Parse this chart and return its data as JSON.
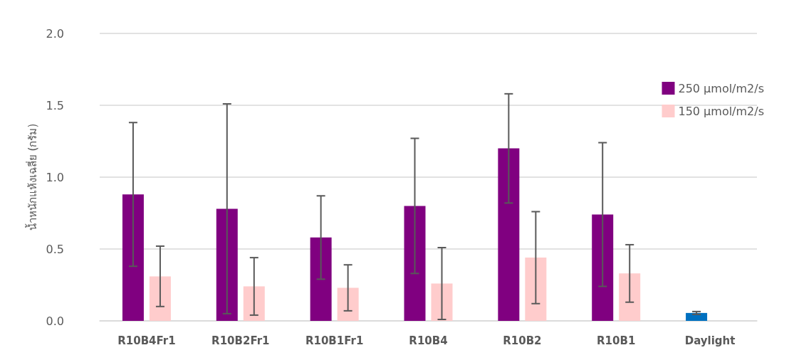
{
  "chart_data": {
    "type": "bar",
    "ylabel": "น้ำหนักแห้งเฉลี่ย (กรัม)",
    "categories": [
      "R10B4Fr1",
      "R10B2Fr1",
      "R10B1Fr1",
      "R10B4",
      "R10B2",
      "R10B1",
      "Daylight"
    ],
    "series": [
      {
        "name": "250 µmol/m2/s",
        "color": "#800080",
        "colors": [
          "#800080",
          "#800080",
          "#800080",
          "#800080",
          "#800080",
          "#800080",
          "#0070c0"
        ],
        "values": [
          0.88,
          0.78,
          0.58,
          0.8,
          1.2,
          0.74,
          0.055
        ],
        "errors": [
          0.5,
          0.73,
          0.29,
          0.47,
          0.38,
          0.5,
          0.01
        ]
      },
      {
        "name": "150 µmol/m2/s",
        "color": "#ffcccc",
        "values": [
          0.31,
          0.24,
          0.23,
          0.26,
          0.44,
          0.33,
          null
        ],
        "errors": [
          0.21,
          0.2,
          0.16,
          0.25,
          0.32,
          0.2,
          null
        ]
      }
    ],
    "ylim": [
      0,
      2
    ],
    "yticks": [
      {
        "value": 0,
        "label": "0.0"
      },
      0.5,
      {
        "value": 1,
        "label": "1.0"
      },
      1.5,
      {
        "value": 2,
        "label": "2.0"
      }
    ],
    "grid": "y",
    "legend": "top right"
  }
}
